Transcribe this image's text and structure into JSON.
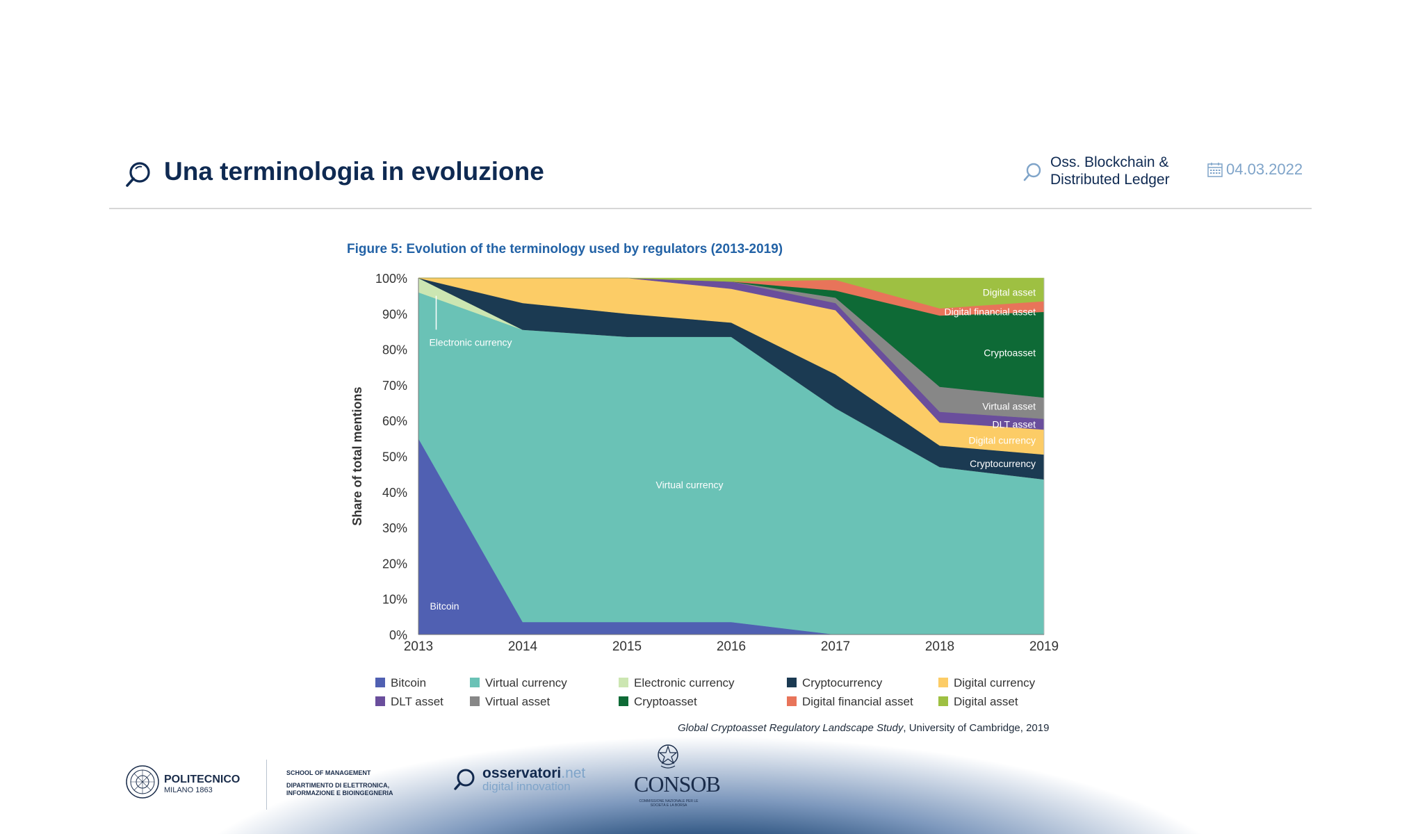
{
  "header": {
    "title": "Una terminologia in evoluzione",
    "org_line1": "Oss. Blockchain &",
    "org_line2": "Distributed Ledger",
    "date": "04.03.2022",
    "icons": {
      "title": "magnifier-icon",
      "org": "magnifier-icon",
      "date": "calendar-icon"
    }
  },
  "chart_data": {
    "type": "area",
    "stacked": true,
    "title": "Figure 5: Evolution of the terminology used by regulators (2013-2019)",
    "xlabel": "",
    "ylabel": "Share of total mentions",
    "ylim": [
      0,
      100
    ],
    "yticks": [
      "0%",
      "10%",
      "20%",
      "30%",
      "40%",
      "50%",
      "60%",
      "70%",
      "80%",
      "90%",
      "100%"
    ],
    "x": [
      "2013",
      "2014",
      "2015",
      "2016",
      "2017",
      "2018",
      "2019"
    ],
    "series": [
      {
        "name": "Bitcoin",
        "color": "#5060b2",
        "values": [
          55,
          3.5,
          3.5,
          3.5,
          0,
          0,
          0
        ]
      },
      {
        "name": "Virtual currency",
        "color": "#6ac2b6",
        "values": [
          41,
          82,
          80,
          80,
          63.5,
          47,
          43.5
        ]
      },
      {
        "name": "Electronic currency",
        "color": "#cce6b2",
        "values": [
          4,
          0,
          0,
          0,
          0,
          0,
          0
        ]
      },
      {
        "name": "Cryptocurrency",
        "color": "#1b3a52",
        "values": [
          0,
          7.5,
          6.5,
          4,
          9.5,
          6,
          7
        ]
      },
      {
        "name": "Digital currency",
        "color": "#fccc66",
        "values": [
          0,
          7,
          10,
          9.5,
          18,
          6.5,
          7
        ]
      },
      {
        "name": "DLT asset",
        "color": "#6a4e9c",
        "values": [
          0,
          0,
          0,
          2,
          2,
          3,
          3
        ]
      },
      {
        "name": "Virtual asset",
        "color": "#878787",
        "values": [
          0,
          0,
          0,
          0,
          1.5,
          7,
          6
        ]
      },
      {
        "name": "Cryptoasset",
        "color": "#0e6a36",
        "values": [
          0,
          0,
          0,
          0,
          2,
          20,
          24
        ]
      },
      {
        "name": "Digital financial asset",
        "color": "#e8745a",
        "values": [
          0,
          0,
          0,
          0,
          3,
          2,
          3
        ]
      },
      {
        "name": "Digital asset",
        "color": "#9ec042",
        "values": [
          0,
          0,
          0,
          1,
          0.5,
          8.5,
          6.5
        ]
      }
    ],
    "legend": [
      "Bitcoin",
      "Virtual currency",
      "Electronic currency",
      "Cryptocurrency",
      "Digital currency",
      "DLT asset",
      "Virtual asset",
      "Cryptoasset",
      "Digital financial asset",
      "Digital asset"
    ],
    "legend_position": "bottom",
    "annotations": [
      {
        "text": "Bitcoin",
        "x": "2013.25",
        "y": 8
      },
      {
        "text": "Virtual currency",
        "x": "2015.6",
        "y": 42
      },
      {
        "text": "Electronic currency",
        "x": "2013.5",
        "y": 82
      },
      {
        "text": "Digital asset",
        "x": "2018.65",
        "y": 96
      },
      {
        "text": "Digital financial asset",
        "x": "2018.68",
        "y": 90.5
      },
      {
        "text": "Cryptoasset",
        "x": "2018.63",
        "y": 79
      },
      {
        "text": "Virtual asset",
        "x": "2018.63",
        "y": 64
      },
      {
        "text": "DLT asset",
        "x": "2018.68",
        "y": 59
      },
      {
        "text": "Digital currency",
        "x": "2018.55",
        "y": 54.5
      },
      {
        "text": "Cryptocurrency",
        "x": "2018.55",
        "y": 48
      }
    ]
  },
  "source": {
    "italic": "Global Cryptoasset Regulatory Landscape Study",
    "rest": ", University of Cambridge, 2019"
  },
  "footer": {
    "politecnico_name": "POLITECNICO",
    "politecnico_sub": "MILANO 1863",
    "school": "SCHOOL OF MANAGEMENT",
    "dept_line1": "DIPARTIMENTO DI ELETTRONICA,",
    "dept_line2": "INFORMAZIONE E BIOINGEGNERIA",
    "oss_brand": "osservatori",
    "oss_tld": ".net",
    "oss_tagline": "digital innovation",
    "consob": "CONSOB",
    "consob_sub": "COMMISSIONE NAZIONALE PER LE SOCIETÀ E LA BORSA"
  }
}
